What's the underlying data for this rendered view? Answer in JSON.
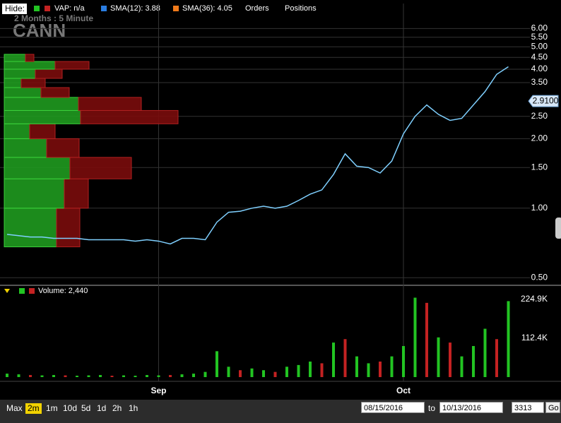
{
  "toolbar": {
    "hide": "Hide:",
    "items": [
      "VAP: n/a",
      "SMA(12): 3.88",
      "SMA(36): 4.05",
      "Orders",
      "Positions"
    ],
    "item_colors": [
      null,
      "#2a7de1",
      "#f07a1a",
      null,
      null
    ]
  },
  "header": {
    "period": "2 Months : 5 Minute",
    "symbol": "CANN"
  },
  "chart_data": [
    {
      "type": "line",
      "log_scale": true,
      "grid": true,
      "color": "#7fd0ff",
      "ylim": [
        0.47,
        7.7
      ],
      "yticks": [
        {
          "value": 6,
          "label": "6.00"
        },
        {
          "value": 5.5,
          "label": "5.50"
        },
        {
          "value": 5,
          "label": "5.00"
        },
        {
          "value": 4.5,
          "label": "4.50"
        },
        {
          "value": 4,
          "label": "4.00"
        },
        {
          "value": 3.5,
          "label": "3.50"
        },
        {
          "value": 2.5,
          "label": "2.50"
        },
        {
          "value": 2,
          "label": "2.00"
        },
        {
          "value": 1.5,
          "label": "1.50"
        },
        {
          "value": 1,
          "label": "1.00"
        },
        {
          "value": 0.5,
          "label": "0.50"
        }
      ],
      "values": [
        0.77,
        0.76,
        0.75,
        0.75,
        0.74,
        0.74,
        0.74,
        0.73,
        0.73,
        0.73,
        0.73,
        0.72,
        0.73,
        0.72,
        0.7,
        0.74,
        0.74,
        0.73,
        0.87,
        0.96,
        0.97,
        1.0,
        1.02,
        1.0,
        1.02,
        1.08,
        1.15,
        1.2,
        1.4,
        1.72,
        1.52,
        1.5,
        1.42,
        1.6,
        2.1,
        2.5,
        2.8,
        2.55,
        2.4,
        2.45,
        2.8,
        3.2,
        3.8,
        4.1
      ],
      "annotation": {
        "value": 2.91,
        "label": "2.9100"
      },
      "vap": {
        "price_edges": [
          0.68,
          1.0,
          1.34,
          1.66,
          2.0,
          2.32,
          2.65,
          3.02,
          3.33,
          3.65,
          4.0,
          4.32,
          4.64
        ],
        "buy": [
          74,
          85,
          93,
          60,
          36,
          108,
          105,
          52,
          24,
          44,
          72,
          30
        ],
        "sell": [
          33,
          34,
          87,
          46,
          36,
          138,
          89,
          40,
          34,
          38,
          48,
          12
        ],
        "buy_color": "#1f9a1f",
        "sell_color": "#7a0c0c",
        "xlim": [
          0,
          794
        ]
      }
    },
    {
      "type": "bar",
      "title": "Volume: 2,440",
      "categories": [
        null,
        null,
        null,
        null,
        null,
        null,
        null,
        null,
        null,
        null,
        null,
        null,
        null,
        "Sep",
        null,
        null,
        null,
        null,
        null,
        null,
        null,
        null,
        null,
        null,
        null,
        null,
        null,
        null,
        null,
        null,
        null,
        null,
        null,
        null,
        "Oct",
        null,
        null,
        null,
        null,
        null,
        null,
        null,
        null,
        null
      ],
      "values": [
        10000,
        8000,
        6000,
        5000,
        6000,
        5000,
        4000,
        5000,
        6000,
        4000,
        5000,
        4000,
        6000,
        5000,
        6000,
        8000,
        10000,
        15000,
        75000,
        30000,
        20000,
        25000,
        20000,
        15000,
        30000,
        35000,
        45000,
        40000,
        100000,
        110000,
        60000,
        40000,
        45000,
        60000,
        90000,
        230000,
        215000,
        115000,
        100000,
        60000,
        90000,
        140000,
        110000,
        220000
      ],
      "colors": [
        "#22c422",
        "#22c422",
        "#c42222",
        "#22c422",
        "#22c422",
        "#c42222",
        "#22c422",
        "#22c422",
        "#22c422",
        "#c42222",
        "#22c422",
        "#22c422",
        "#22c422",
        "#22c422",
        "#c42222",
        "#22c422",
        "#22c422",
        "#22c422",
        "#22c422",
        "#22c422",
        "#c42222",
        "#22c422",
        "#22c422",
        "#c42222",
        "#22c422",
        "#22c422",
        "#22c422",
        "#c42222",
        "#22c422",
        "#c42222",
        "#22c422",
        "#22c422",
        "#c42222",
        "#22c422",
        "#22c422",
        "#22c422",
        "#c42222",
        "#22c422",
        "#c42222",
        "#22c422",
        "#22c422",
        "#22c422",
        "#c42222",
        "#22c422"
      ],
      "ylim": [
        0,
        263800
      ],
      "yticks": [
        {
          "value": 112400,
          "label": "112.4K"
        },
        {
          "value": 224900,
          "label": "224.9K"
        }
      ]
    }
  ],
  "controls": {
    "ranges": [
      "Max",
      "2m",
      "1m",
      "10d",
      "5d",
      "1d",
      "2h",
      "1h"
    ],
    "selected": 1,
    "from": "08/15/2016",
    "to_label": "to",
    "to": "10/13/2016",
    "count": "3313",
    "go": "Go"
  }
}
